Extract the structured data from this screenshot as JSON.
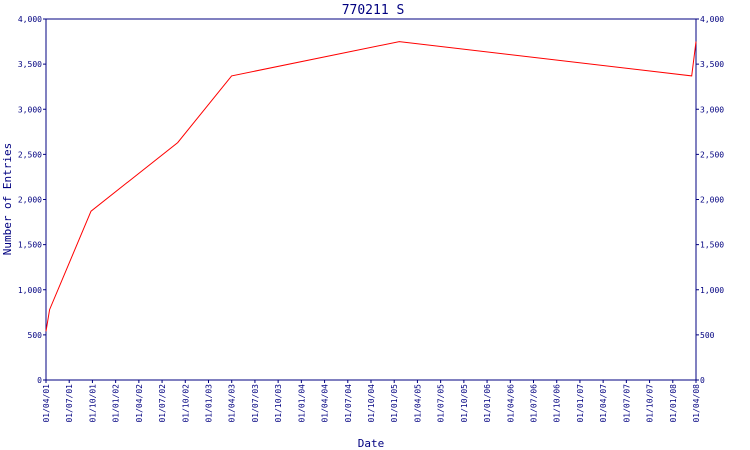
{
  "chart_data": {
    "type": "line",
    "title": "770211 S",
    "xlabel": "Date",
    "ylabel": "Number of Entries",
    "ylim": [
      0,
      4000
    ],
    "yticks": [
      0,
      500,
      1000,
      1500,
      2000,
      2500,
      3000,
      3500,
      4000
    ],
    "ytick_labels": [
      "0",
      "500",
      "1,000",
      "1,500",
      "2,000",
      "2,500",
      "3,000",
      "3,500",
      "4,000"
    ],
    "xlim": [
      "2001-04-01",
      "2008-04-01"
    ],
    "xtick_labels": [
      "01/04/01",
      "01/07/01",
      "01/10/01",
      "01/01/02",
      "01/04/02",
      "01/07/02",
      "01/10/02",
      "01/01/03",
      "01/04/03",
      "01/07/03",
      "01/10/03",
      "01/01/04",
      "01/04/04",
      "01/07/04",
      "01/10/04",
      "01/01/05",
      "01/04/05",
      "01/07/05",
      "01/10/05",
      "01/01/06",
      "01/04/06",
      "01/07/06",
      "01/10/06",
      "01/01/07",
      "01/04/07",
      "01/07/07",
      "01/10/07",
      "01/01/08",
      "01/04/08"
    ],
    "grid": false,
    "line_color": "#ff0000",
    "axis_color": "#000080",
    "series": [
      {
        "x": [
          "2001-04-01",
          "2001-04-15",
          "2001-09-25",
          "2002-09-01",
          "2003-04-01",
          "2005-01-20",
          "2008-03-15",
          "2008-04-01"
        ],
        "y": [
          540,
          780,
          1870,
          2630,
          3370,
          3750,
          3370,
          3750
        ]
      }
    ]
  }
}
